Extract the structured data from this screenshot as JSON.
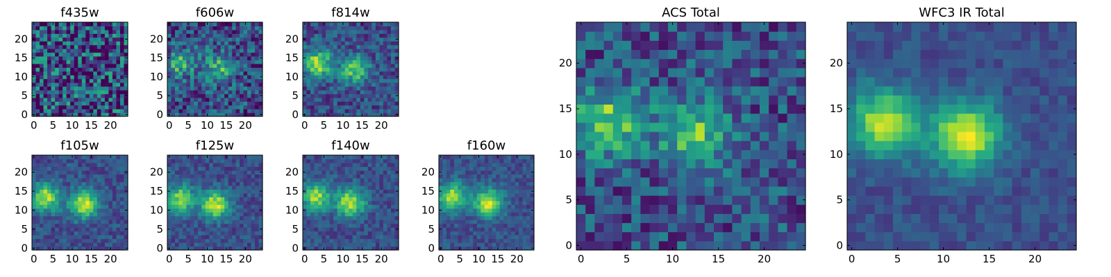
{
  "chart_data": [
    {
      "type": "heatmap",
      "title": "f435w",
      "xlabel": "",
      "ylabel": "",
      "xlim": [
        0,
        24
      ],
      "ylim": [
        0,
        24
      ],
      "xticks": [
        "0",
        "5",
        "10",
        "15",
        "20"
      ],
      "yticks": [
        "0",
        "5",
        "10",
        "15",
        "20"
      ],
      "colormap": "viridis",
      "grid": false,
      "sources": [],
      "noise": 0.55
    },
    {
      "type": "heatmap",
      "title": "f606w",
      "xlabel": "",
      "ylabel": "",
      "xlim": [
        0,
        24
      ],
      "ylim": [
        0,
        24
      ],
      "xticks": [
        "0",
        "5",
        "10",
        "15",
        "20"
      ],
      "yticks": [
        "0",
        "5",
        "10",
        "15",
        "20"
      ],
      "colormap": "viridis",
      "grid": false,
      "sources": [
        {
          "x": 3,
          "y": 13.5,
          "amp": 0.55
        },
        {
          "x": 13,
          "y": 12.5,
          "amp": 0.55
        }
      ],
      "noise": 0.35
    },
    {
      "type": "heatmap",
      "title": "f814w",
      "xlabel": "",
      "ylabel": "",
      "xlim": [
        0,
        24
      ],
      "ylim": [
        0,
        24
      ],
      "xticks": [
        "0",
        "5",
        "10",
        "15",
        "20"
      ],
      "yticks": [
        "0",
        "5",
        "10",
        "15",
        "20"
      ],
      "colormap": "viridis",
      "grid": false,
      "sources": [
        {
          "x": 3.5,
          "y": 13.5,
          "amp": 0.85
        },
        {
          "x": 13,
          "y": 12,
          "amp": 0.7
        }
      ],
      "noise": 0.25
    },
    {
      "type": "heatmap",
      "title": "f105w",
      "xlabel": "",
      "ylabel": "",
      "xlim": [
        0,
        24
      ],
      "ylim": [
        0,
        24
      ],
      "xticks": [
        "0",
        "5",
        "10",
        "15",
        "20"
      ],
      "yticks": [
        "0",
        "5",
        "10",
        "15",
        "20"
      ],
      "colormap": "viridis",
      "grid": false,
      "sources": [
        {
          "x": 3,
          "y": 13.5,
          "amp": 0.9
        },
        {
          "x": 13,
          "y": 11.5,
          "amp": 0.95
        }
      ],
      "noise": 0.18
    },
    {
      "type": "heatmap",
      "title": "f125w",
      "xlabel": "",
      "ylabel": "",
      "xlim": [
        0,
        24
      ],
      "ylim": [
        0,
        24
      ],
      "xticks": [
        "0",
        "5",
        "10",
        "15",
        "20"
      ],
      "yticks": [
        "0",
        "5",
        "10",
        "15",
        "20"
      ],
      "colormap": "viridis",
      "grid": false,
      "sources": [
        {
          "x": 3,
          "y": 13,
          "amp": 0.8
        },
        {
          "x": 12,
          "y": 11.5,
          "amp": 0.95
        }
      ],
      "noise": 0.18
    },
    {
      "type": "heatmap",
      "title": "f140w",
      "xlabel": "",
      "ylabel": "",
      "xlim": [
        0,
        24
      ],
      "ylim": [
        0,
        24
      ],
      "xticks": [
        "0",
        "5",
        "10",
        "15",
        "20"
      ],
      "yticks": [
        "0",
        "5",
        "10",
        "15",
        "20"
      ],
      "colormap": "viridis",
      "grid": false,
      "sources": [
        {
          "x": 3,
          "y": 13.5,
          "amp": 0.85
        },
        {
          "x": 12,
          "y": 12,
          "amp": 0.95
        }
      ],
      "noise": 0.18
    },
    {
      "type": "heatmap",
      "title": "f160w",
      "xlabel": "",
      "ylabel": "",
      "xlim": [
        0,
        24
      ],
      "ylim": [
        0,
        24
      ],
      "xticks": [
        "0",
        "5",
        "10",
        "15",
        "20"
      ],
      "yticks": [
        "0",
        "5",
        "10",
        "15",
        "20"
      ],
      "colormap": "viridis",
      "grid": false,
      "sources": [
        {
          "x": 3,
          "y": 13.5,
          "amp": 0.9
        },
        {
          "x": 12.5,
          "y": 12,
          "amp": 0.95
        }
      ],
      "noise": 0.16
    },
    {
      "type": "heatmap",
      "title": "ACS Total",
      "xlabel": "",
      "ylabel": "",
      "xlim": [
        0,
        24
      ],
      "ylim": [
        0,
        24
      ],
      "xticks": [
        "0",
        "5",
        "10",
        "15",
        "20"
      ],
      "yticks": [
        "0",
        "5",
        "10",
        "15",
        "20"
      ],
      "colormap": "viridis",
      "grid": false,
      "sources": [
        {
          "x": 3,
          "y": 13.5,
          "amp": 0.75
        },
        {
          "x": 12.5,
          "y": 12.5,
          "amp": 0.7
        }
      ],
      "noise": 0.3
    },
    {
      "type": "heatmap",
      "title": "WFC3 IR Total",
      "xlabel": "",
      "ylabel": "",
      "xlim": [
        0,
        24
      ],
      "ylim": [
        0,
        24
      ],
      "xticks": [
        "0",
        "5",
        "10",
        "15",
        "20"
      ],
      "yticks": [
        "0",
        "5",
        "10",
        "15",
        "20"
      ],
      "colormap": "viridis",
      "grid": false,
      "sources": [
        {
          "x": 3.5,
          "y": 13.5,
          "amp": 0.9
        },
        {
          "x": 12.5,
          "y": 12,
          "amp": 1.0
        }
      ],
      "noise": 0.12
    }
  ]
}
